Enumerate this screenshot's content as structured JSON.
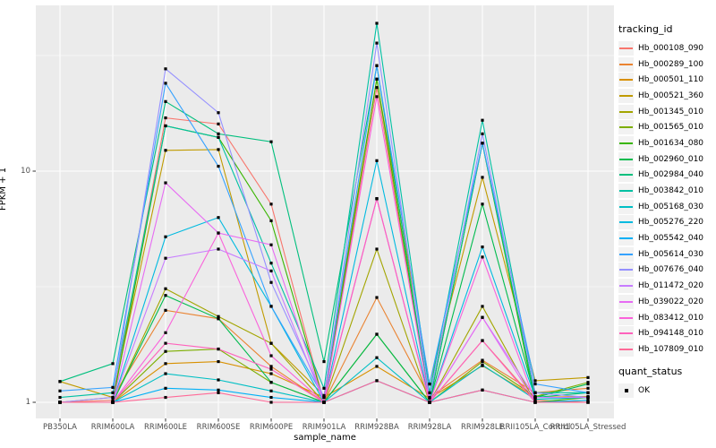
{
  "chart_data": {
    "type": "line",
    "title": "",
    "xlabel": "sample_name",
    "ylabel": "FPKM + 1",
    "yscale": "log10",
    "yticks": [
      1,
      10
    ],
    "minor_gridline_values": [
      3.162,
      31.62
    ],
    "ylim_log": [
      0.983,
      1.694
    ],
    "grid": true,
    "panel_bg": "#EBEBEB",
    "grid_color": "#FFFFFF",
    "point_color": "#000000",
    "tick_color": "#333333",
    "categories": [
      "PB350LA",
      "RRIM600LA",
      "RRIM600LE",
      "RRIM600SE",
      "RRIM600PE",
      "RRIM901LA",
      "RRIM928BA",
      "RRIM928LA",
      "RRIM928LE",
      "RRII105LA_Control",
      "RRII105LA_Stressed"
    ],
    "legend": {
      "title": "tracking_id",
      "position": "right"
    },
    "quant_status_legend": {
      "title": "quant_status",
      "items": [
        {
          "label": "OK",
          "marker": "black-square"
        }
      ]
    },
    "series": [
      {
        "name": "Hb_000108_090",
        "color": "#F8766D",
        "values": [
          1.0,
          1.02,
          17.0,
          16.0,
          7.2,
          1.0,
          23.0,
          1.0,
          1.85,
          1.02,
          1.0
        ]
      },
      {
        "name": "Hb_000289_100",
        "color": "#EA8331",
        "values": [
          1.0,
          1.05,
          2.5,
          2.3,
          1.43,
          1.0,
          2.84,
          1.05,
          1.52,
          1.1,
          1.15
        ]
      },
      {
        "name": "Hb_000501_110",
        "color": "#D89000",
        "values": [
          1.0,
          1.0,
          1.47,
          1.5,
          1.33,
          1.05,
          1.43,
          1.04,
          1.44,
          1.05,
          1.06
        ]
      },
      {
        "name": "Hb_000521_360",
        "color": "#C09B00",
        "values": [
          1.23,
          1.05,
          12.3,
          12.4,
          1.8,
          1.07,
          25.0,
          1.2,
          9.4,
          1.24,
          1.28
        ]
      },
      {
        "name": "Hb_001345_010",
        "color": "#A3A500",
        "values": [
          1.0,
          1.0,
          3.1,
          2.35,
          1.8,
          1.0,
          4.6,
          1.0,
          2.6,
          1.0,
          1.02
        ]
      },
      {
        "name": "Hb_001565_010",
        "color": "#7CAE00",
        "values": [
          1.0,
          1.0,
          1.66,
          1.7,
          1.22,
          1.0,
          1.97,
          1.0,
          1.5,
          1.06,
          1.22
        ]
      },
      {
        "name": "Hb_001634_080",
        "color": "#39B600",
        "values": [
          1.0,
          1.0,
          15.7,
          14.0,
          6.1,
          1.0,
          25.0,
          1.0,
          13.2,
          1.0,
          1.05
        ]
      },
      {
        "name": "Hb_002960_010",
        "color": "#00BB4E",
        "values": [
          1.0,
          1.0,
          2.9,
          2.3,
          1.22,
          1.0,
          1.97,
          1.0,
          7.2,
          1.05,
          1.2
        ]
      },
      {
        "name": "Hb_002984_040",
        "color": "#00BF7D",
        "values": [
          1.23,
          1.47,
          20.0,
          14.5,
          13.4,
          1.5,
          28.6,
          1.0,
          13.2,
          1.05,
          1.1
        ]
      },
      {
        "name": "Hb_003842_010",
        "color": "#00C1A3",
        "values": [
          1.05,
          1.1,
          15.7,
          14.0,
          4.0,
          1.15,
          43.6,
          1.1,
          16.6,
          1.1,
          1.1
        ]
      },
      {
        "name": "Hb_005168_030",
        "color": "#00BFC4",
        "values": [
          1.0,
          1.0,
          1.33,
          1.25,
          1.12,
          1.0,
          1.56,
          1.0,
          1.45,
          1.03,
          1.05
        ]
      },
      {
        "name": "Hb_005276_220",
        "color": "#00BAE0",
        "values": [
          1.0,
          1.0,
          5.2,
          6.3,
          2.6,
          1.0,
          11.1,
          1.0,
          4.7,
          1.05,
          1.05
        ]
      },
      {
        "name": "Hb_005542_040",
        "color": "#00B0F6",
        "values": [
          1.0,
          1.0,
          1.15,
          1.13,
          1.05,
          1.0,
          1.24,
          1.0,
          1.13,
          1.0,
          1.02
        ]
      },
      {
        "name": "Hb_005614_030",
        "color": "#35A2FF",
        "values": [
          1.12,
          1.16,
          24.0,
          10.5,
          2.6,
          1.05,
          28.6,
          1.2,
          13.2,
          1.2,
          1.1
        ]
      },
      {
        "name": "Hb_007676_040",
        "color": "#9590FF",
        "values": [
          1.0,
          1.05,
          27.7,
          17.9,
          3.3,
          1.05,
          35.8,
          1.05,
          14.5,
          1.1,
          1.05
        ]
      },
      {
        "name": "Hb_011472_020",
        "color": "#C77CFF",
        "values": [
          1.0,
          1.0,
          4.2,
          4.6,
          3.7,
          1.0,
          7.6,
          1.0,
          2.33,
          1.05,
          1.05
        ]
      },
      {
        "name": "Hb_039022_020",
        "color": "#E76BF3",
        "values": [
          1.0,
          1.0,
          8.9,
          5.4,
          4.8,
          1.0,
          7.6,
          1.0,
          2.33,
          1.0,
          1.0
        ]
      },
      {
        "name": "Hb_083412_010",
        "color": "#FA62DB",
        "values": [
          1.0,
          1.0,
          2.0,
          5.4,
          1.59,
          1.0,
          21.0,
          1.0,
          4.25,
          1.0,
          1.0
        ]
      },
      {
        "name": "Hb_094148_010",
        "color": "#FF62BC",
        "values": [
          1.0,
          1.0,
          1.8,
          1.7,
          1.39,
          1.0,
          7.6,
          1.0,
          1.85,
          1.0,
          1.0
        ]
      },
      {
        "name": "Hb_107809_010",
        "color": "#FF6A98",
        "values": [
          1.0,
          1.0,
          1.05,
          1.1,
          1.0,
          1.0,
          1.24,
          1.0,
          1.13,
          1.0,
          1.0
        ]
      }
    ]
  }
}
